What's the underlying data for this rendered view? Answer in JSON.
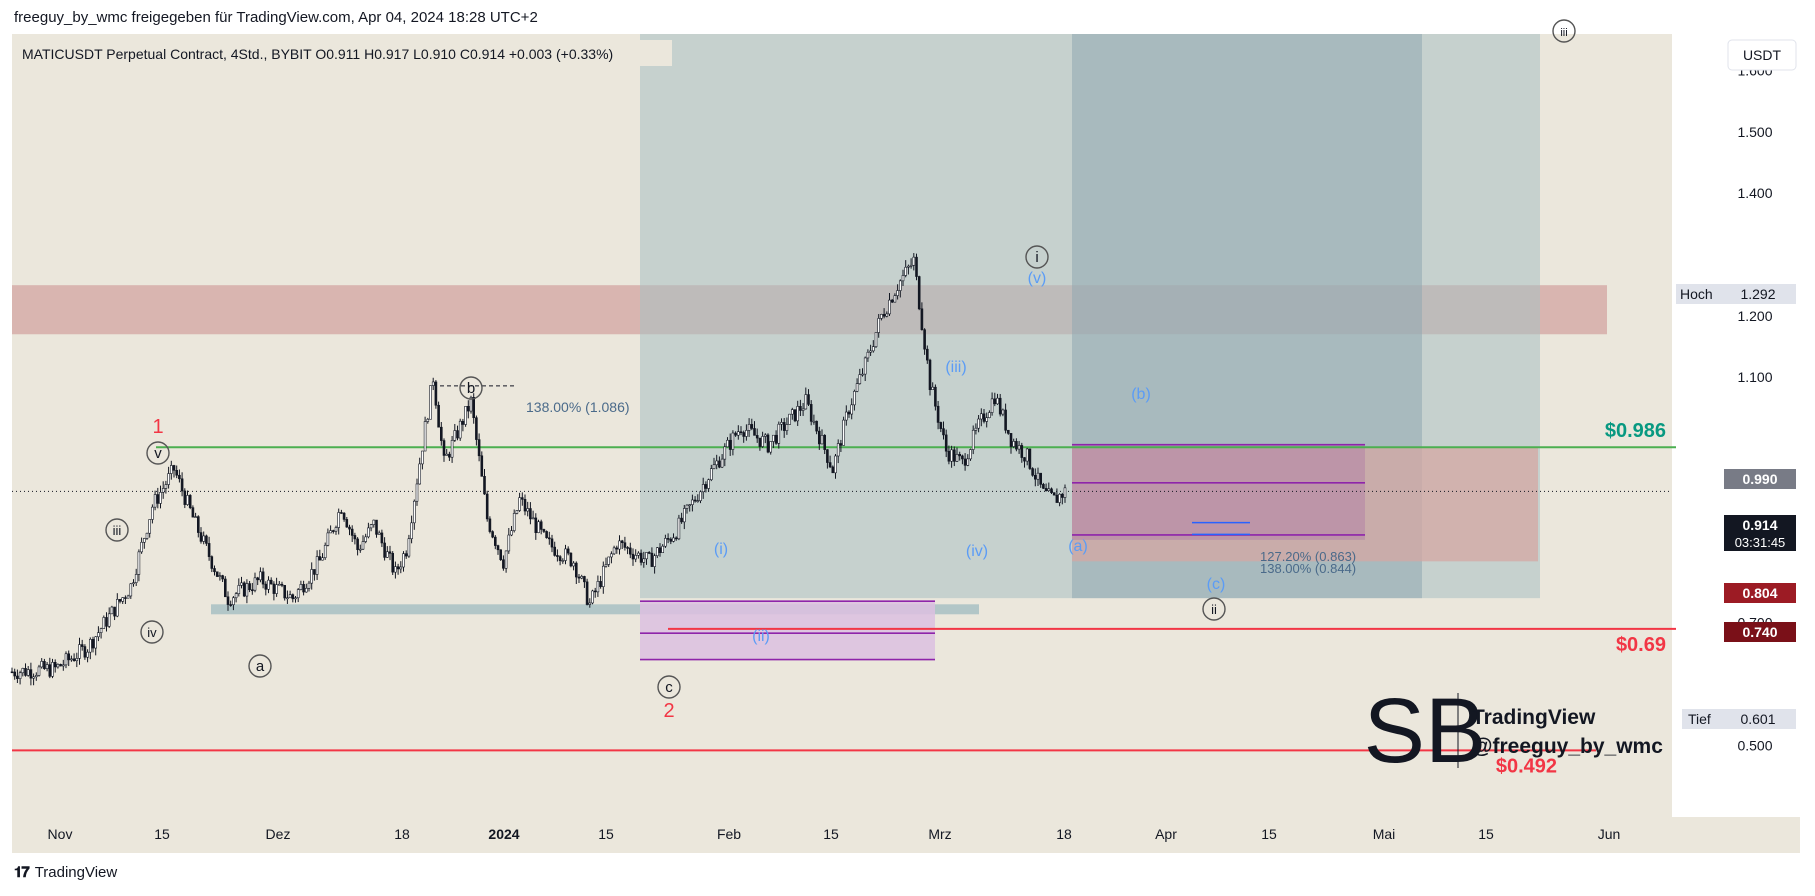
{
  "header": {
    "share_text": "freeguy_by_wmc freigegeben für TradingView.com, Apr 04, 2024 18:28 UTC+2"
  },
  "footer": {
    "brand": "TradingView"
  },
  "legend": {
    "text": "MATICUSDT Perpetual Contract, 4Std., BYBIT  O0.911  H0.917  L0.910  C0.914  +0.003 (+0.33%)"
  },
  "currency_button": "USDT",
  "watermark": {
    "name": "TradingView",
    "handle": "@freeguy_by_wmc",
    "logo_letters": "SB"
  },
  "colors": {
    "background": "#ebe7dc",
    "candle": "#131722",
    "green_line": "#4caf50",
    "red_line": "#f23645",
    "resistance_zone": "#cd9593",
    "purple": "#8e24aa",
    "blue_label": "#5b9cf6",
    "pos_box": "#a8bfc3",
    "teal_text": "#089981"
  },
  "chart_data": {
    "type": "candlestick",
    "symbol": "MATICUSDT Perpetual Contract",
    "timeframe": "4Std.",
    "exchange": "BYBIT",
    "ohlc_last": {
      "open": 0.911,
      "high": 0.917,
      "low": 0.91,
      "close": 0.914,
      "change": "+0.003 (+0.33%)"
    },
    "x_ticks": [
      "Nov",
      "15",
      "Dez",
      "18",
      "2024",
      "15",
      "Feb",
      "15",
      "Mrz",
      "18",
      "Apr",
      "15",
      "Mai",
      "15",
      "Jun"
    ],
    "y_ticks": [
      "1.600",
      "1.500",
      "1.400",
      "1.200",
      "1.100",
      "0.700",
      "0.500"
    ],
    "ylim": [
      0.43,
      1.72
    ],
    "price_labels": [
      {
        "label": "Hoch",
        "value": "1.292"
      },
      {
        "value": "0.990"
      },
      {
        "value": "0.914",
        "sub": "03:31:45"
      },
      {
        "value": "0.804"
      },
      {
        "value": "0.740"
      },
      {
        "label": "Tief",
        "value": "0.601"
      }
    ],
    "levels": [
      {
        "text": "$0.986",
        "value": 0.986
      },
      {
        "text": "$0.69",
        "value": 0.69
      },
      {
        "text": "$0.492",
        "value": 0.492
      }
    ],
    "fib_labels": [
      {
        "text": "138.00% (1.086)"
      },
      {
        "text": "127.20% (0.863)"
      },
      {
        "text": "138.00% (0.844)"
      }
    ],
    "wave_labels": [
      {
        "text": "1"
      },
      {
        "text": "v"
      },
      {
        "text": "iii"
      },
      {
        "text": "iv"
      },
      {
        "text": "a"
      },
      {
        "text": "b"
      },
      {
        "text": "c"
      },
      {
        "text": "2"
      },
      {
        "text": "(i)"
      },
      {
        "text": "(ii)"
      },
      {
        "text": "(iii)"
      },
      {
        "text": "(iv)"
      },
      {
        "text": "(v)"
      },
      {
        "text": "i"
      },
      {
        "text": "(a)"
      },
      {
        "text": "(b)"
      },
      {
        "text": "(c)"
      },
      {
        "text": "ii"
      },
      {
        "text": "iii"
      }
    ],
    "price_path": [
      [
        0,
        0.62
      ],
      [
        8,
        0.625
      ],
      [
        14,
        0.66
      ],
      [
        22,
        0.76
      ],
      [
        26,
        0.89
      ],
      [
        30,
        0.95
      ],
      [
        34,
        0.86
      ],
      [
        40,
        0.74
      ],
      [
        46,
        0.77
      ],
      [
        52,
        0.74
      ],
      [
        57,
        0.8
      ],
      [
        61,
        0.89
      ],
      [
        64,
        0.82
      ],
      [
        67,
        0.86
      ],
      [
        71,
        0.78
      ],
      [
        73,
        0.82
      ],
      [
        76,
        0.99
      ],
      [
        78,
        1.1
      ],
      [
        80,
        0.96
      ],
      [
        85,
        1.06
      ],
      [
        88,
        0.87
      ],
      [
        91,
        0.8
      ],
      [
        94,
        0.9
      ],
      [
        99,
        0.83
      ],
      [
        104,
        0.8
      ],
      [
        107,
        0.73
      ],
      [
        112,
        0.83
      ],
      [
        118,
        0.8
      ],
      [
        123,
        0.85
      ],
      [
        129,
        0.94
      ],
      [
        135,
        1.02
      ],
      [
        140,
        0.99
      ],
      [
        147,
        1.06
      ],
      [
        152,
        0.95
      ],
      [
        155,
        1.05
      ],
      [
        158,
        1.12
      ],
      [
        161,
        1.2
      ],
      [
        164,
        1.25
      ],
      [
        167,
        1.29
      ],
      [
        170,
        1.09
      ],
      [
        173,
        0.98
      ],
      [
        176,
        0.96
      ],
      [
        179,
        1.02
      ],
      [
        182,
        1.07
      ],
      [
        185,
        1.0
      ],
      [
        188,
        0.97
      ],
      [
        191,
        0.91
      ],
      [
        193,
        0.9
      ],
      [
        195,
        0.914
      ]
    ]
  }
}
